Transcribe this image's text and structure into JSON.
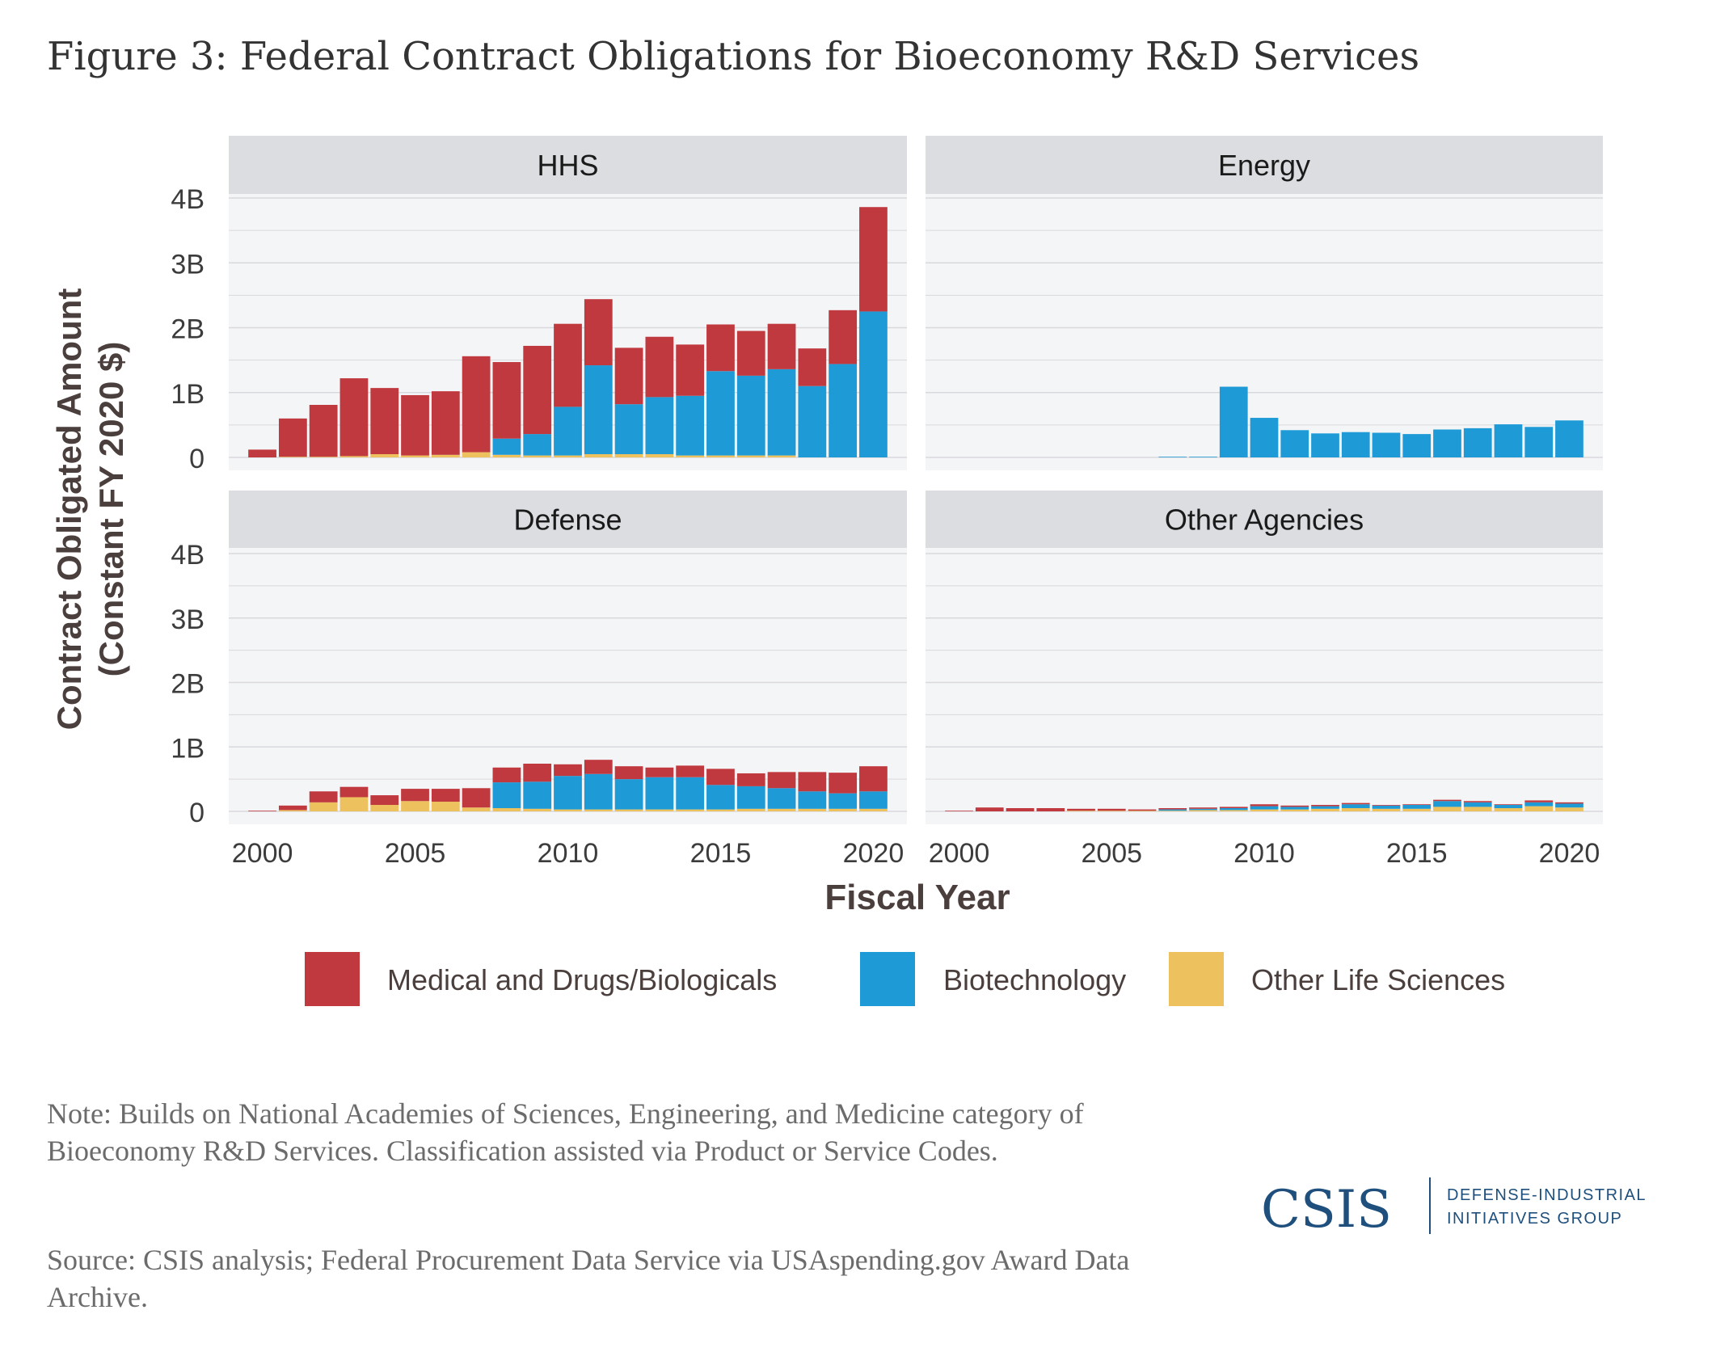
{
  "title": "Figure 3: Federal Contract Obligations for Bioeconomy R&D Services",
  "note": "Note: Builds on National Academies of Sciences, Engineering, and Medicine category of Bioeconomy R&D Services. Classification assisted via Product or Service Codes.",
  "source": "Source: CSIS analysis; Federal Procurement Data Service via USAspending.gov Award Data Archive.",
  "logo": {
    "name": "CSIS",
    "line1": "DEFENSE-INDUSTRIAL",
    "line2": "INITIATIVES GROUP"
  },
  "colors": {
    "medical": "#c0393f",
    "biotech": "#1e9ad6",
    "other": "#edc15d",
    "panel_bg": "#f4f5f7",
    "strip_bg": "#dcdde0",
    "grid": "#d9d9dd",
    "axis_text": "#3c3c3c",
    "axis_title": "#4a3f3c"
  },
  "chart_data": {
    "type": "bar",
    "stacked": true,
    "xlabel": "Fiscal Year",
    "ylabel_line1": "Contract Obligated Amount",
    "ylabel_line2": "(Constant FY 2020 $)",
    "ylim": [
      0,
      4
    ],
    "y_ticks": [
      0,
      1,
      2,
      3,
      4
    ],
    "y_tick_labels": [
      "0",
      "1B",
      "2B",
      "3B",
      "4B"
    ],
    "x_ticks": [
      2000,
      2005,
      2010,
      2015,
      2020
    ],
    "x_tick_labels": [
      "2000",
      "2005",
      "2010",
      "2015",
      "2020"
    ],
    "x": [
      2000,
      2001,
      2002,
      2003,
      2004,
      2005,
      2006,
      2007,
      2008,
      2009,
      2010,
      2011,
      2012,
      2013,
      2014,
      2015,
      2016,
      2017,
      2018,
      2019,
      2020
    ],
    "series_names": [
      "Medical and Drugs/Biologicals",
      "Biotechnology",
      "Other Life Sciences"
    ],
    "grid": true,
    "legend_position": "bottom",
    "panels": [
      {
        "name": "HHS",
        "series": [
          {
            "name": "Other Life Sciences",
            "values": [
              0,
              0.01,
              0.01,
              0.02,
              0.05,
              0.03,
              0.04,
              0.08,
              0.04,
              0.03,
              0.03,
              0.05,
              0.05,
              0.05,
              0.03,
              0.03,
              0.03,
              0.03,
              0,
              0,
              0
            ]
          },
          {
            "name": "Biotechnology",
            "values": [
              0,
              0,
              0,
              0,
              0,
              0,
              0,
              0,
              0.25,
              0.33,
              0.75,
              1.37,
              0.77,
              0.88,
              0.92,
              1.3,
              1.23,
              1.33,
              1.1,
              1.44,
              2.25
            ]
          },
          {
            "name": "Medical and Drugs/Biologicals",
            "values": [
              0.12,
              0.59,
              0.8,
              1.2,
              1.02,
              0.93,
              0.98,
              1.48,
              1.18,
              1.36,
              1.28,
              1.02,
              0.87,
              0.93,
              0.79,
              0.72,
              0.69,
              0.7,
              0.58,
              0.83,
              1.61
            ]
          }
        ]
      },
      {
        "name": "Energy",
        "series": [
          {
            "name": "Other Life Sciences",
            "values": [
              0,
              0,
              0,
              0,
              0,
              0,
              0,
              0,
              0,
              0,
              0,
              0,
              0,
              0,
              0,
              0,
              0,
              0,
              0,
              0,
              0
            ]
          },
          {
            "name": "Biotechnology",
            "values": [
              0,
              0,
              0,
              0,
              0,
              0,
              0,
              0.01,
              0.01,
              1.09,
              0.61,
              0.42,
              0.37,
              0.39,
              0.38,
              0.36,
              0.43,
              0.45,
              0.51,
              0.47,
              0.57
            ]
          },
          {
            "name": "Medical and Drugs/Biologicals",
            "values": [
              0,
              0,
              0,
              0,
              0,
              0,
              0,
              0,
              0,
              0,
              0,
              0,
              0,
              0,
              0,
              0,
              0,
              0,
              0,
              0,
              0
            ]
          }
        ]
      },
      {
        "name": "Defense",
        "series": [
          {
            "name": "Other Life Sciences",
            "values": [
              0,
              0.02,
              0.14,
              0.22,
              0.1,
              0.16,
              0.15,
              0.06,
              0.05,
              0.04,
              0.03,
              0.03,
              0.03,
              0.03,
              0.03,
              0.03,
              0.04,
              0.04,
              0.04,
              0.04,
              0.04
            ]
          },
          {
            "name": "Biotechnology",
            "values": [
              0,
              0,
              0,
              0,
              0,
              0,
              0,
              0,
              0.4,
              0.42,
              0.52,
              0.55,
              0.47,
              0.5,
              0.5,
              0.38,
              0.35,
              0.32,
              0.27,
              0.24,
              0.27
            ]
          },
          {
            "name": "Medical and Drugs/Biologicals",
            "values": [
              0.01,
              0.07,
              0.17,
              0.16,
              0.15,
              0.19,
              0.2,
              0.3,
              0.23,
              0.28,
              0.18,
              0.22,
              0.2,
              0.15,
              0.18,
              0.25,
              0.2,
              0.25,
              0.3,
              0.32,
              0.39
            ]
          }
        ]
      },
      {
        "name": "Other Agencies",
        "series": [
          {
            "name": "Other Life Sciences",
            "values": [
              0,
              0,
              0,
              0,
              0.01,
              0.01,
              0.01,
              0.01,
              0.02,
              0.02,
              0.03,
              0.03,
              0.04,
              0.05,
              0.04,
              0.04,
              0.07,
              0.07,
              0.05,
              0.08,
              0.06
            ]
          },
          {
            "name": "Biotechnology",
            "values": [
              0,
              0,
              0,
              0,
              0,
              0,
              0,
              0.02,
              0.02,
              0.03,
              0.05,
              0.04,
              0.04,
              0.06,
              0.05,
              0.06,
              0.09,
              0.07,
              0.05,
              0.06,
              0.06
            ]
          },
          {
            "name": "Medical and Drugs/Biologicals",
            "values": [
              0.01,
              0.06,
              0.05,
              0.05,
              0.03,
              0.03,
              0.02,
              0.02,
              0.02,
              0.02,
              0.03,
              0.02,
              0.02,
              0.02,
              0.01,
              0.01,
              0.02,
              0.02,
              0.01,
              0.03,
              0.02
            ]
          }
        ]
      }
    ]
  }
}
